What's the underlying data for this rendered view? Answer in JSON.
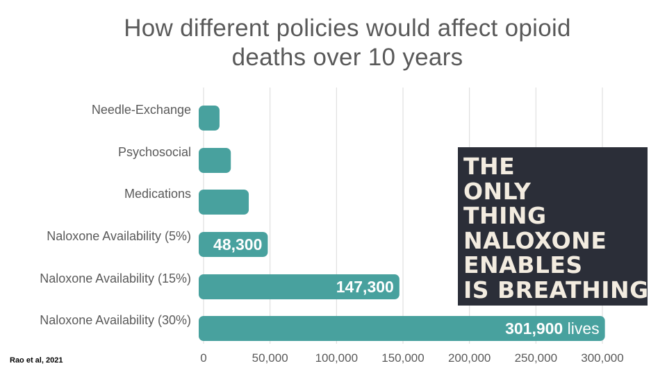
{
  "chart_data": {
    "type": "bar",
    "orientation": "horizontal",
    "title_lines": [
      "How different policies would affect opioid",
      "deaths over 10 years"
    ],
    "categories": [
      "Needle-Exchange",
      "Psychosocial",
      "Medications",
      "Naloxone Availability (5%)",
      "Naloxone Availability (15%)",
      "Naloxone Availability (30%)"
    ],
    "values": [
      12000,
      20500,
      34000,
      48300,
      147300,
      301900
    ],
    "data_labels": [
      "",
      "",
      "",
      "48,300",
      "147,300",
      "301,900"
    ],
    "data_label_suffix": [
      "",
      "",
      "",
      "",
      "",
      "lives"
    ],
    "xlim": [
      0,
      310000
    ],
    "xticks": [
      0,
      50000,
      100000,
      150000,
      200000,
      250000,
      300000
    ],
    "xtick_labels": [
      "0",
      "50,000",
      "100,000",
      "150,000",
      "200,000",
      "250,000",
      "300,000"
    ],
    "grid": true,
    "bar_color": "#48a19e",
    "grid_color": "#d9d9d9"
  },
  "source": "Rao et al, 2021",
  "poster": {
    "lines": [
      "THE",
      "ONLY",
      "THING",
      "NALOXONE",
      "ENABLES",
      "IS BREATHING."
    ],
    "background": "#2b2e38",
    "text_color": "#f3ece0"
  }
}
